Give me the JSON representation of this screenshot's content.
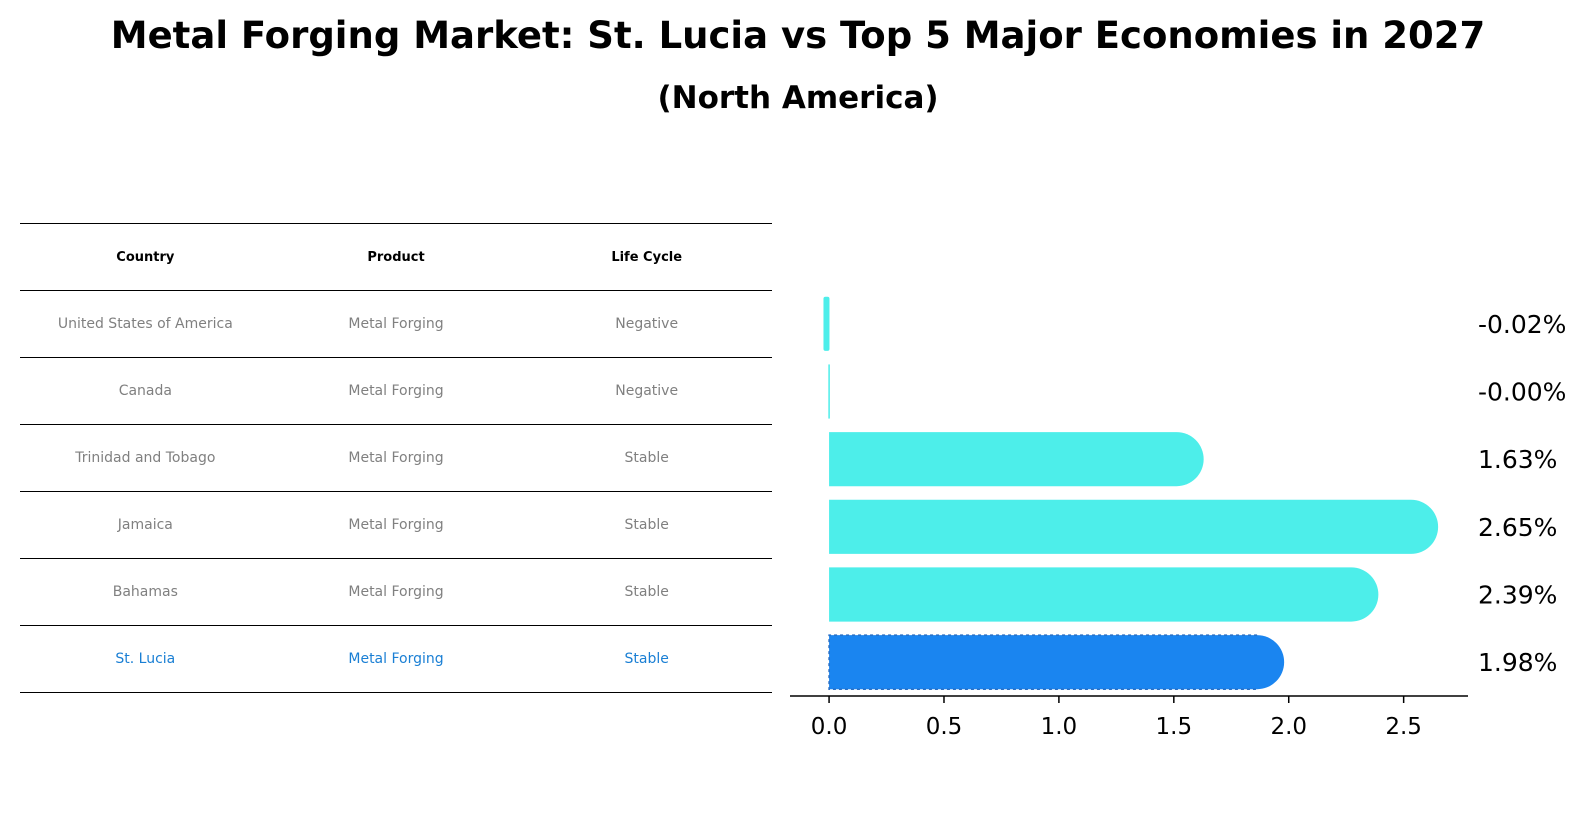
{
  "title": "Metal Forging Market: St. Lucia vs Top 5 Major Economies in 2027",
  "subtitle": "(North America)",
  "table": {
    "headers": [
      "Country",
      "Product",
      "Life Cycle"
    ],
    "rows": [
      [
        "United States of America",
        "Metal Forging",
        "Negative"
      ],
      [
        "Canada",
        "Metal Forging",
        "Negative"
      ],
      [
        "Trinidad and Tobago",
        "Metal Forging",
        "Stable"
      ],
      [
        "Jamaica",
        "Metal Forging",
        "Stable"
      ],
      [
        "Bahamas",
        "Metal Forging",
        "Stable"
      ],
      [
        "St. Lucia",
        "Metal Forging",
        "Stable"
      ]
    ],
    "highlight_row": 5,
    "highlight_color": "#1a7fd4"
  },
  "chart_data": {
    "type": "bar",
    "orientation": "horizontal",
    "categories": [
      "United States of America",
      "Canada",
      "Trinidad and Tobago",
      "Jamaica",
      "Bahamas",
      "St. Lucia"
    ],
    "values": [
      -0.02,
      -0.001,
      1.63,
      2.65,
      2.39,
      1.98
    ],
    "value_labels": [
      "-0.02%",
      "-0.00%",
      "1.63%",
      "2.65%",
      "2.39%",
      "1.98%"
    ],
    "xticks": [
      "0.0",
      "0.5",
      "1.0",
      "1.5",
      "2.0",
      "2.5"
    ],
    "xlim": [
      -0.17,
      2.78
    ],
    "grid": false,
    "colors": {
      "default": "#4deeea",
      "highlight": "#1a85f0"
    },
    "highlight_index": 5
  }
}
